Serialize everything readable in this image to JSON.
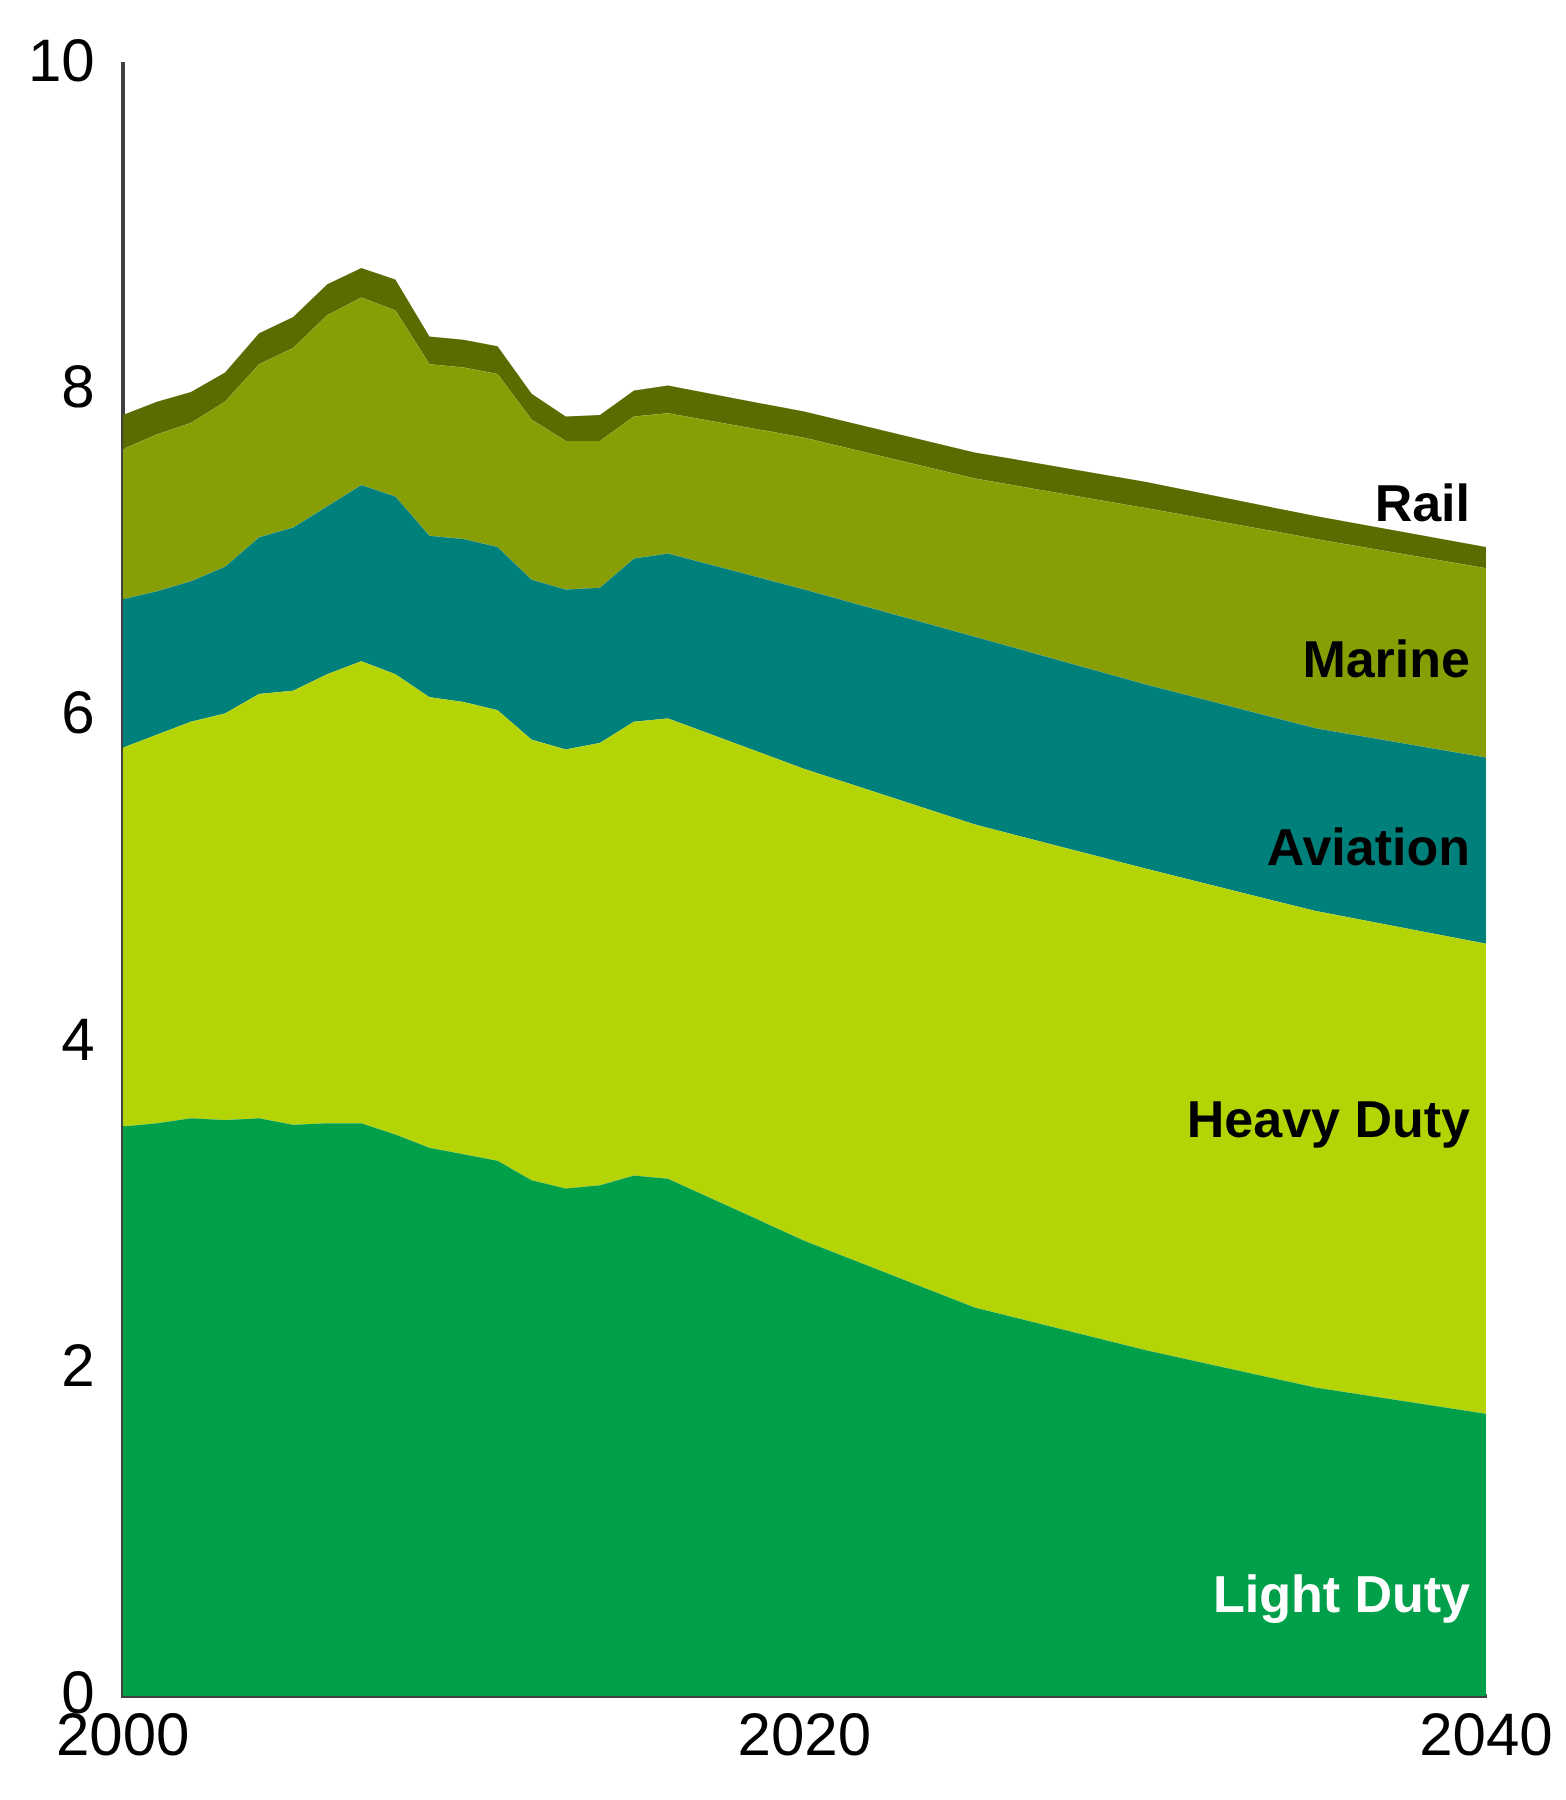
{
  "chart_data": {
    "type": "area",
    "stacked": true,
    "x": [
      2000,
      2001,
      2002,
      2003,
      2004,
      2005,
      2006,
      2007,
      2008,
      2009,
      2010,
      2011,
      2012,
      2013,
      2014,
      2015,
      2016,
      2020,
      2025,
      2030,
      2035,
      2040
    ],
    "xlim": [
      2000,
      2040
    ],
    "xticks": [
      2000,
      2020,
      2040
    ],
    "ylim": [
      0,
      10
    ],
    "yticks": [
      0,
      2,
      4,
      6,
      8,
      10
    ],
    "grid": false,
    "legend": false,
    "series": [
      {
        "name": "Light Duty",
        "color": "#00a04a",
        "values": [
          3.49,
          3.51,
          3.54,
          3.53,
          3.54,
          3.5,
          3.51,
          3.51,
          3.44,
          3.36,
          3.32,
          3.28,
          3.16,
          3.11,
          3.13,
          3.19,
          3.17,
          2.79,
          2.38,
          2.12,
          1.89,
          1.73
        ]
      },
      {
        "name": "Heavy Duty",
        "color": "#b5d405",
        "values": [
          2.32,
          2.38,
          2.43,
          2.49,
          2.6,
          2.66,
          2.75,
          2.83,
          2.82,
          2.76,
          2.77,
          2.76,
          2.7,
          2.69,
          2.71,
          2.78,
          2.82,
          2.89,
          2.96,
          2.95,
          2.92,
          2.88
        ]
      },
      {
        "name": "Aviation",
        "color": "#00807a",
        "values": [
          0.91,
          0.88,
          0.86,
          0.9,
          0.96,
          1.0,
          1.03,
          1.08,
          1.09,
          0.99,
          1.0,
          1.0,
          0.98,
          0.98,
          0.95,
          1.0,
          1.01,
          1.1,
          1.15,
          1.13,
          1.12,
          1.14
        ]
      },
      {
        "name": "Marine",
        "color": "#889e05",
        "values": [
          0.92,
          0.96,
          0.97,
          1.01,
          1.06,
          1.1,
          1.17,
          1.15,
          1.14,
          1.05,
          1.05,
          1.06,
          0.98,
          0.91,
          0.9,
          0.87,
          0.86,
          0.93,
          0.97,
          1.08,
          1.16,
          1.16
        ]
      },
      {
        "name": "Rail",
        "color": "#5a6b00",
        "values": [
          0.21,
          0.2,
          0.19,
          0.18,
          0.19,
          0.19,
          0.19,
          0.18,
          0.19,
          0.17,
          0.17,
          0.17,
          0.16,
          0.15,
          0.16,
          0.16,
          0.17,
          0.16,
          0.16,
          0.16,
          0.14,
          0.13
        ]
      }
    ]
  }
}
